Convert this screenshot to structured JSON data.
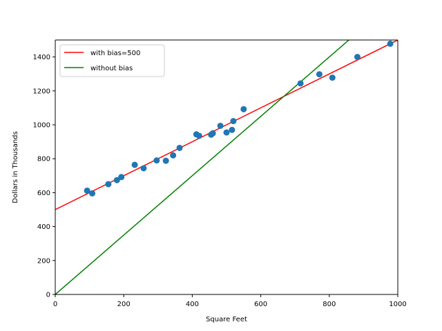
{
  "chart_data": {
    "type": "scatter",
    "xlabel": "Square Feet",
    "ylabel": "Dollars in Thousands",
    "xlim": [
      0,
      1000
    ],
    "ylim": [
      0,
      1500
    ],
    "xticks": [
      0,
      200,
      400,
      600,
      800,
      1000
    ],
    "yticks": [
      0,
      200,
      400,
      600,
      800,
      1000,
      1200,
      1400
    ],
    "grid": false,
    "legend_position": "top-left",
    "points": {
      "color": "#1f77b4",
      "x": [
        93,
        108,
        155,
        180,
        193,
        232,
        258,
        296,
        323,
        344,
        363,
        412,
        420,
        455,
        460,
        482,
        500,
        516,
        520,
        550,
        716,
        771,
        809,
        882,
        978
      ],
      "y": [
        612,
        596,
        650,
        674,
        692,
        764,
        744,
        790,
        788,
        820,
        864,
        944,
        935,
        942,
        950,
        994,
        955,
        970,
        1022,
        1092,
        1244,
        1298,
        1278,
        1400,
        1478
      ]
    },
    "series": [
      {
        "name": "with bias=500",
        "color": "#ff0000",
        "slope": 1.0,
        "intercept": 500
      },
      {
        "name": "without bias",
        "color": "#008000",
        "slope": 1.75,
        "intercept": 0
      }
    ]
  }
}
